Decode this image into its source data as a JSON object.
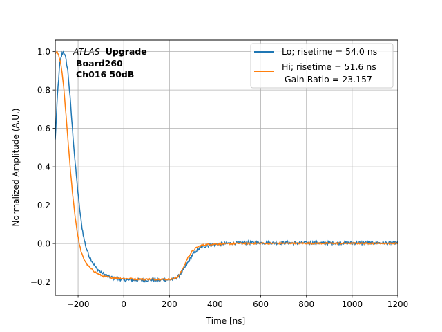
{
  "chart_data": {
    "type": "line",
    "xlabel": "Time [ns]",
    "ylabel": "Normalized Amplitude (A.U.)",
    "xlim": [
      -300,
      1200
    ],
    "ylim": [
      -0.27,
      1.06
    ],
    "xticks": [
      -200,
      0,
      200,
      400,
      600,
      800,
      1000,
      1200
    ],
    "xtick_labels": [
      "−200",
      "0",
      "200",
      "400",
      "600",
      "800",
      "1000",
      "1200"
    ],
    "yticks": [
      -0.2,
      0.0,
      0.2,
      0.4,
      0.6,
      0.8,
      1.0
    ],
    "ytick_labels": [
      "−0.2",
      "0.0",
      "0.2",
      "0.4",
      "0.6",
      "0.8",
      "1.0"
    ],
    "grid": true,
    "legend_position": "top-right",
    "annotation": {
      "line1_italic": "ATLAS",
      "line1_bold": "Upgrade",
      "line2": "Board260",
      "line3": "Ch016 50dB"
    },
    "series": [
      {
        "name": "Lo; risetime = 54.0 ns",
        "color": "#1f77b4",
        "noise": 0.008,
        "x": [
          -300,
          -290,
          -280,
          -270,
          -263,
          -255,
          -245,
          -235,
          -225,
          -215,
          -205,
          -195,
          -185,
          -175,
          -165,
          -150,
          -135,
          -120,
          -100,
          -80,
          -60,
          -40,
          -20,
          0,
          50,
          100,
          150,
          200,
          220,
          240,
          260,
          280,
          300,
          320,
          340,
          360,
          380,
          400,
          450,
          500,
          600,
          700,
          800,
          900,
          1000,
          1100,
          1200
        ],
        "y": [
          0.54,
          0.78,
          0.94,
          0.99,
          1.0,
          0.97,
          0.9,
          0.76,
          0.6,
          0.45,
          0.32,
          0.2,
          0.1,
          0.03,
          -0.02,
          -0.07,
          -0.1,
          -0.13,
          -0.15,
          -0.165,
          -0.175,
          -0.18,
          -0.185,
          -0.19,
          -0.19,
          -0.19,
          -0.19,
          -0.188,
          -0.185,
          -0.17,
          -0.14,
          -0.1,
          -0.06,
          -0.035,
          -0.02,
          -0.012,
          -0.008,
          -0.005,
          0.0,
          0.003,
          0.004,
          0.003,
          0.003,
          0.003,
          0.003,
          0.003,
          0.003
        ]
      },
      {
        "name": "Hi; risetime = 51.6 ns\n Gain Ratio = 23.157",
        "color": "#ff7f0e",
        "noise": 0.004,
        "x": [
          -300,
          -293,
          -285,
          -278,
          -270,
          -262,
          -255,
          -245,
          -235,
          -225,
          -215,
          -205,
          -195,
          -185,
          -175,
          -160,
          -145,
          -130,
          -110,
          -90,
          -60,
          -30,
          0,
          50,
          100,
          150,
          200,
          220,
          235,
          250,
          265,
          280,
          300,
          320,
          340,
          360,
          380,
          400,
          450,
          500,
          600,
          700,
          800,
          900,
          1000,
          1100,
          1200
        ],
        "y": [
          0.99,
          1.0,
          0.98,
          0.95,
          0.89,
          0.8,
          0.7,
          0.55,
          0.4,
          0.27,
          0.16,
          0.07,
          0.0,
          -0.05,
          -0.08,
          -0.11,
          -0.13,
          -0.145,
          -0.16,
          -0.17,
          -0.177,
          -0.18,
          -0.182,
          -0.185,
          -0.186,
          -0.186,
          -0.186,
          -0.184,
          -0.175,
          -0.15,
          -0.115,
          -0.075,
          -0.04,
          -0.02,
          -0.01,
          -0.006,
          -0.004,
          -0.003,
          -0.002,
          0.0,
          0.001,
          0.001,
          0.001,
          0.001,
          0.001,
          0.001,
          0.001
        ]
      }
    ]
  }
}
